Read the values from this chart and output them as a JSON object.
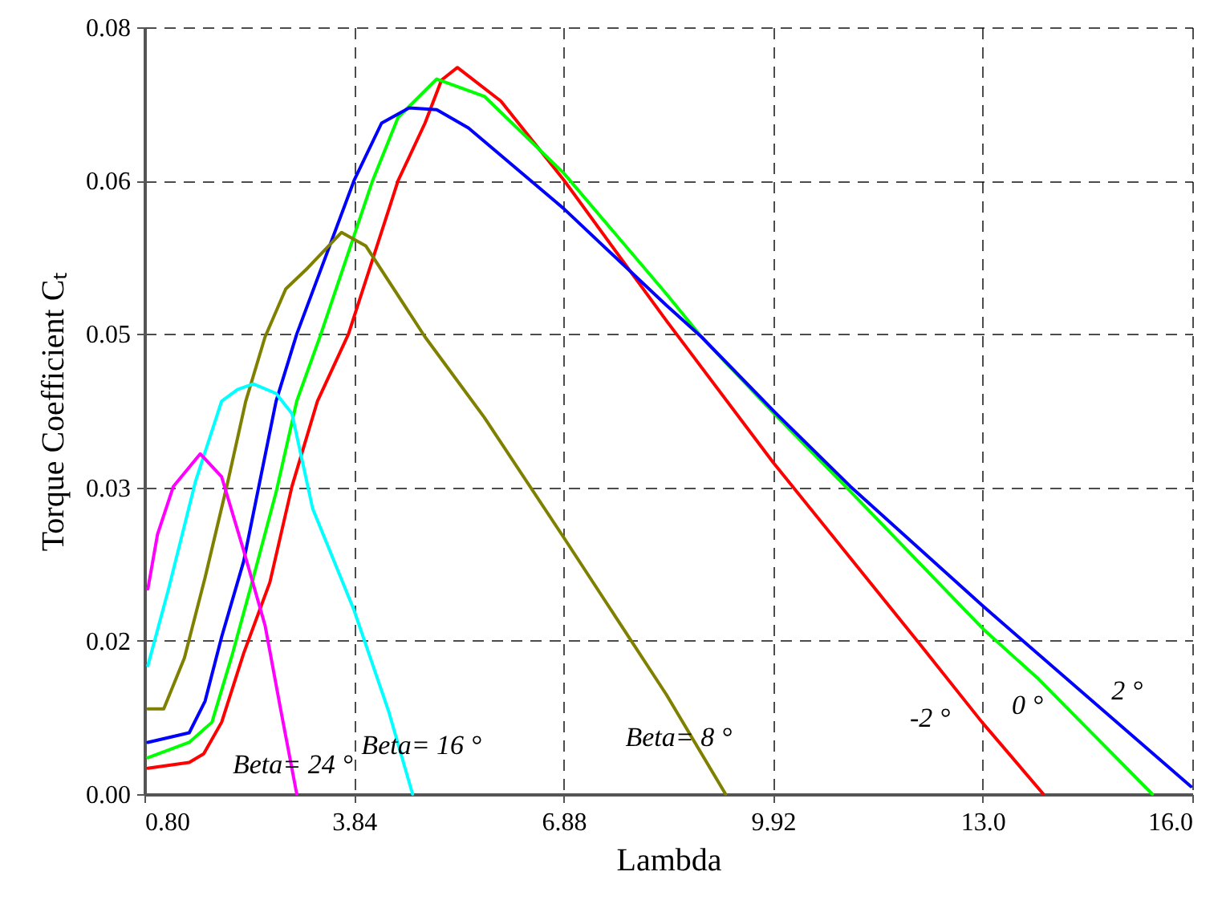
{
  "chart_data": {
    "type": "line",
    "xlabel": "Lambda",
    "ylabel": "Torque Coefficient Cₜ",
    "xlim": [
      0.8,
      16
    ],
    "ylim": [
      0,
      0.08
    ],
    "xticks": [
      {
        "value": 0.8,
        "label": "0.80"
      },
      3.84,
      6.88,
      9.92,
      {
        "value": 12.96,
        "label": "13.0"
      },
      {
        "value": 16,
        "label": "16.0"
      }
    ],
    "yticks": [
      {
        "value": 0,
        "label": "0.00"
      },
      {
        "value": 0.016,
        "label": "0.02"
      },
      {
        "value": 0.032,
        "label": "0.03"
      },
      {
        "value": 0.048,
        "label": "0.05"
      },
      {
        "value": 0.064,
        "label": "0.06"
      },
      {
        "value": 0.08,
        "label": "0.08"
      }
    ],
    "grid": true,
    "line_style": "solid",
    "series": [
      {
        "name": "-2 °",
        "color": "#ff0000",
        "x": [
          0.85,
          1.45,
          1.66,
          1.92,
          2.24,
          2.62,
          2.94,
          3.31,
          3.76,
          4.48,
          4.87,
          5.11,
          5.34,
          5.97,
          6.88,
          8.37,
          9.92,
          12.02,
          12.95,
          13.84
        ],
        "values": [
          0.0027,
          0.0033,
          0.0042,
          0.0075,
          0.0147,
          0.0221,
          0.0321,
          0.041,
          0.048,
          0.064,
          0.07,
          0.0745,
          0.0758,
          0.0723,
          0.0641,
          0.0494,
          0.0346,
          0.0159,
          0.0075,
          0
        ]
      },
      {
        "name": "0 °",
        "color": "#00ff00",
        "x": [
          0.85,
          1.45,
          1.78,
          2.08,
          2.38,
          2.71,
          3.01,
          3.36,
          4.11,
          4.48,
          5.04,
          5.73,
          6.88,
          8.37,
          8.88,
          9.92,
          10.97,
          12.97,
          13.77,
          15.42
        ],
        "values": [
          0.0038,
          0.0054,
          0.0075,
          0.0147,
          0.0226,
          0.0315,
          0.041,
          0.048,
          0.064,
          0.0706,
          0.0746,
          0.0728,
          0.0648,
          0.0522,
          0.0477,
          0.0398,
          0.0321,
          0.0172,
          0.012,
          0
        ]
      },
      {
        "name": "2 °",
        "color": "#0000ff",
        "x": [
          0.85,
          1.45,
          1.68,
          1.92,
          2.24,
          2.71,
          3.01,
          3.84,
          4.24,
          4.64,
          5.04,
          5.5,
          6.88,
          8.37,
          8.88,
          9.95,
          11.04,
          12.95,
          15.98
        ],
        "values": [
          0.0054,
          0.0064,
          0.0097,
          0.0164,
          0.0243,
          0.041,
          0.048,
          0.064,
          0.07,
          0.0716,
          0.0714,
          0.0695,
          0.0611,
          0.051,
          0.0477,
          0.0398,
          0.0321,
          0.0197,
          0.0008
        ]
      },
      {
        "name": "Beta= 8 °",
        "color": "#808000",
        "x": [
          0.85,
          1.08,
          1.38,
          1.68,
          2.01,
          2.27,
          2.55,
          2.85,
          3.17,
          3.66,
          4.01,
          4.87,
          5.73,
          6.88,
          8.37,
          9.23
        ],
        "values": [
          0.0089,
          0.0089,
          0.0142,
          0.0226,
          0.0326,
          0.041,
          0.0477,
          0.0527,
          0.0549,
          0.0586,
          0.0572,
          0.0477,
          0.0393,
          0.0268,
          0.0104,
          0
        ]
      },
      {
        "name": "Beta= 16 °",
        "color": "#00ffff",
        "x": [
          0.85,
          1.15,
          1.54,
          1.92,
          2.15,
          2.38,
          2.71,
          2.94,
          3.24,
          3.84,
          4.34,
          4.69
        ],
        "values": [
          0.0134,
          0.0214,
          0.0326,
          0.041,
          0.0422,
          0.0428,
          0.0418,
          0.0397,
          0.0298,
          0.0192,
          0.0087,
          0
        ]
      },
      {
        "name": "Beta= 24 °",
        "color": "#ff00ff",
        "x": [
          0.85,
          0.99,
          1.22,
          1.61,
          1.92,
          2.24,
          2.55,
          2.78,
          3.01
        ],
        "values": [
          0.0214,
          0.0271,
          0.0321,
          0.0355,
          0.0331,
          0.0254,
          0.0176,
          0.0087,
          0
        ]
      }
    ]
  }
}
